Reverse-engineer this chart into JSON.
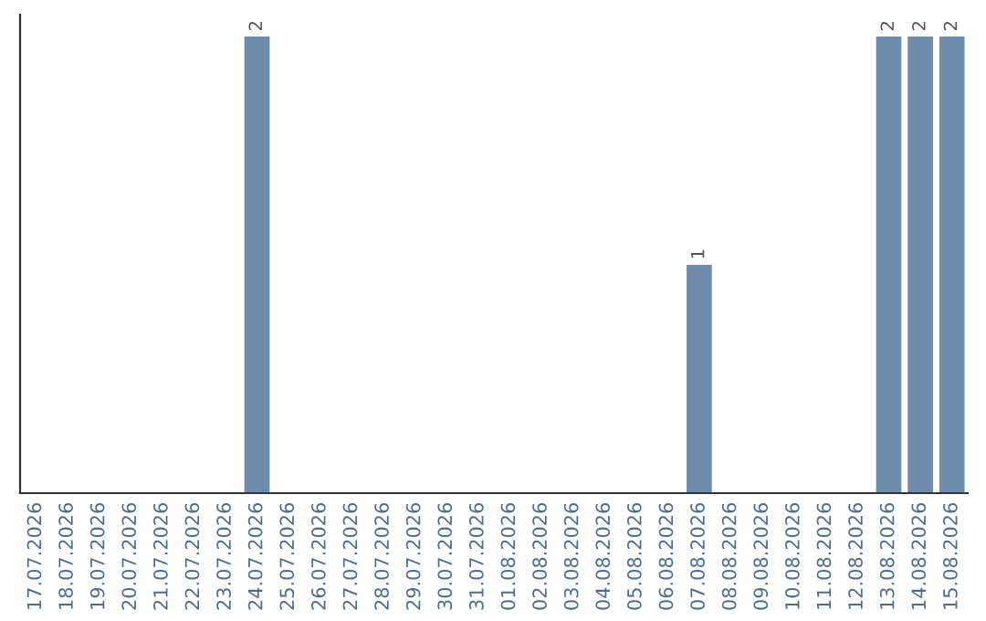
{
  "chart_data": {
    "type": "bar",
    "categories": [
      "17.07.2026",
      "18.07.2026",
      "19.07.2026",
      "20.07.2026",
      "21.07.2026",
      "22.07.2026",
      "23.07.2026",
      "24.07.2026",
      "25.07.2026",
      "26.07.2026",
      "27.07.2026",
      "28.07.2026",
      "29.07.2026",
      "30.07.2026",
      "31.07.2026",
      "01.08.2026",
      "02.08.2026",
      "03.08.2026",
      "04.08.2026",
      "05.08.2026",
      "06.08.2026",
      "07.08.2026",
      "08.08.2026",
      "09.08.2026",
      "10.08.2026",
      "11.08.2026",
      "12.08.2026",
      "13.08.2026",
      "14.08.2026",
      "15.08.2026"
    ],
    "values": [
      0,
      0,
      0,
      0,
      0,
      0,
      0,
      2,
      0,
      0,
      0,
      0,
      0,
      0,
      0,
      0,
      0,
      0,
      0,
      0,
      0,
      1,
      0,
      0,
      0,
      0,
      0,
      2,
      2,
      2
    ],
    "value_labels": [
      null,
      null,
      null,
      null,
      null,
      null,
      null,
      "2",
      null,
      null,
      null,
      null,
      null,
      null,
      null,
      null,
      null,
      null,
      null,
      null,
      null,
      "1",
      null,
      null,
      null,
      null,
      null,
      "2",
      "2",
      "2"
    ],
    "color": "#6e8cab",
    "tick_labels": "x",
    "grid": false,
    "legend": false
  }
}
